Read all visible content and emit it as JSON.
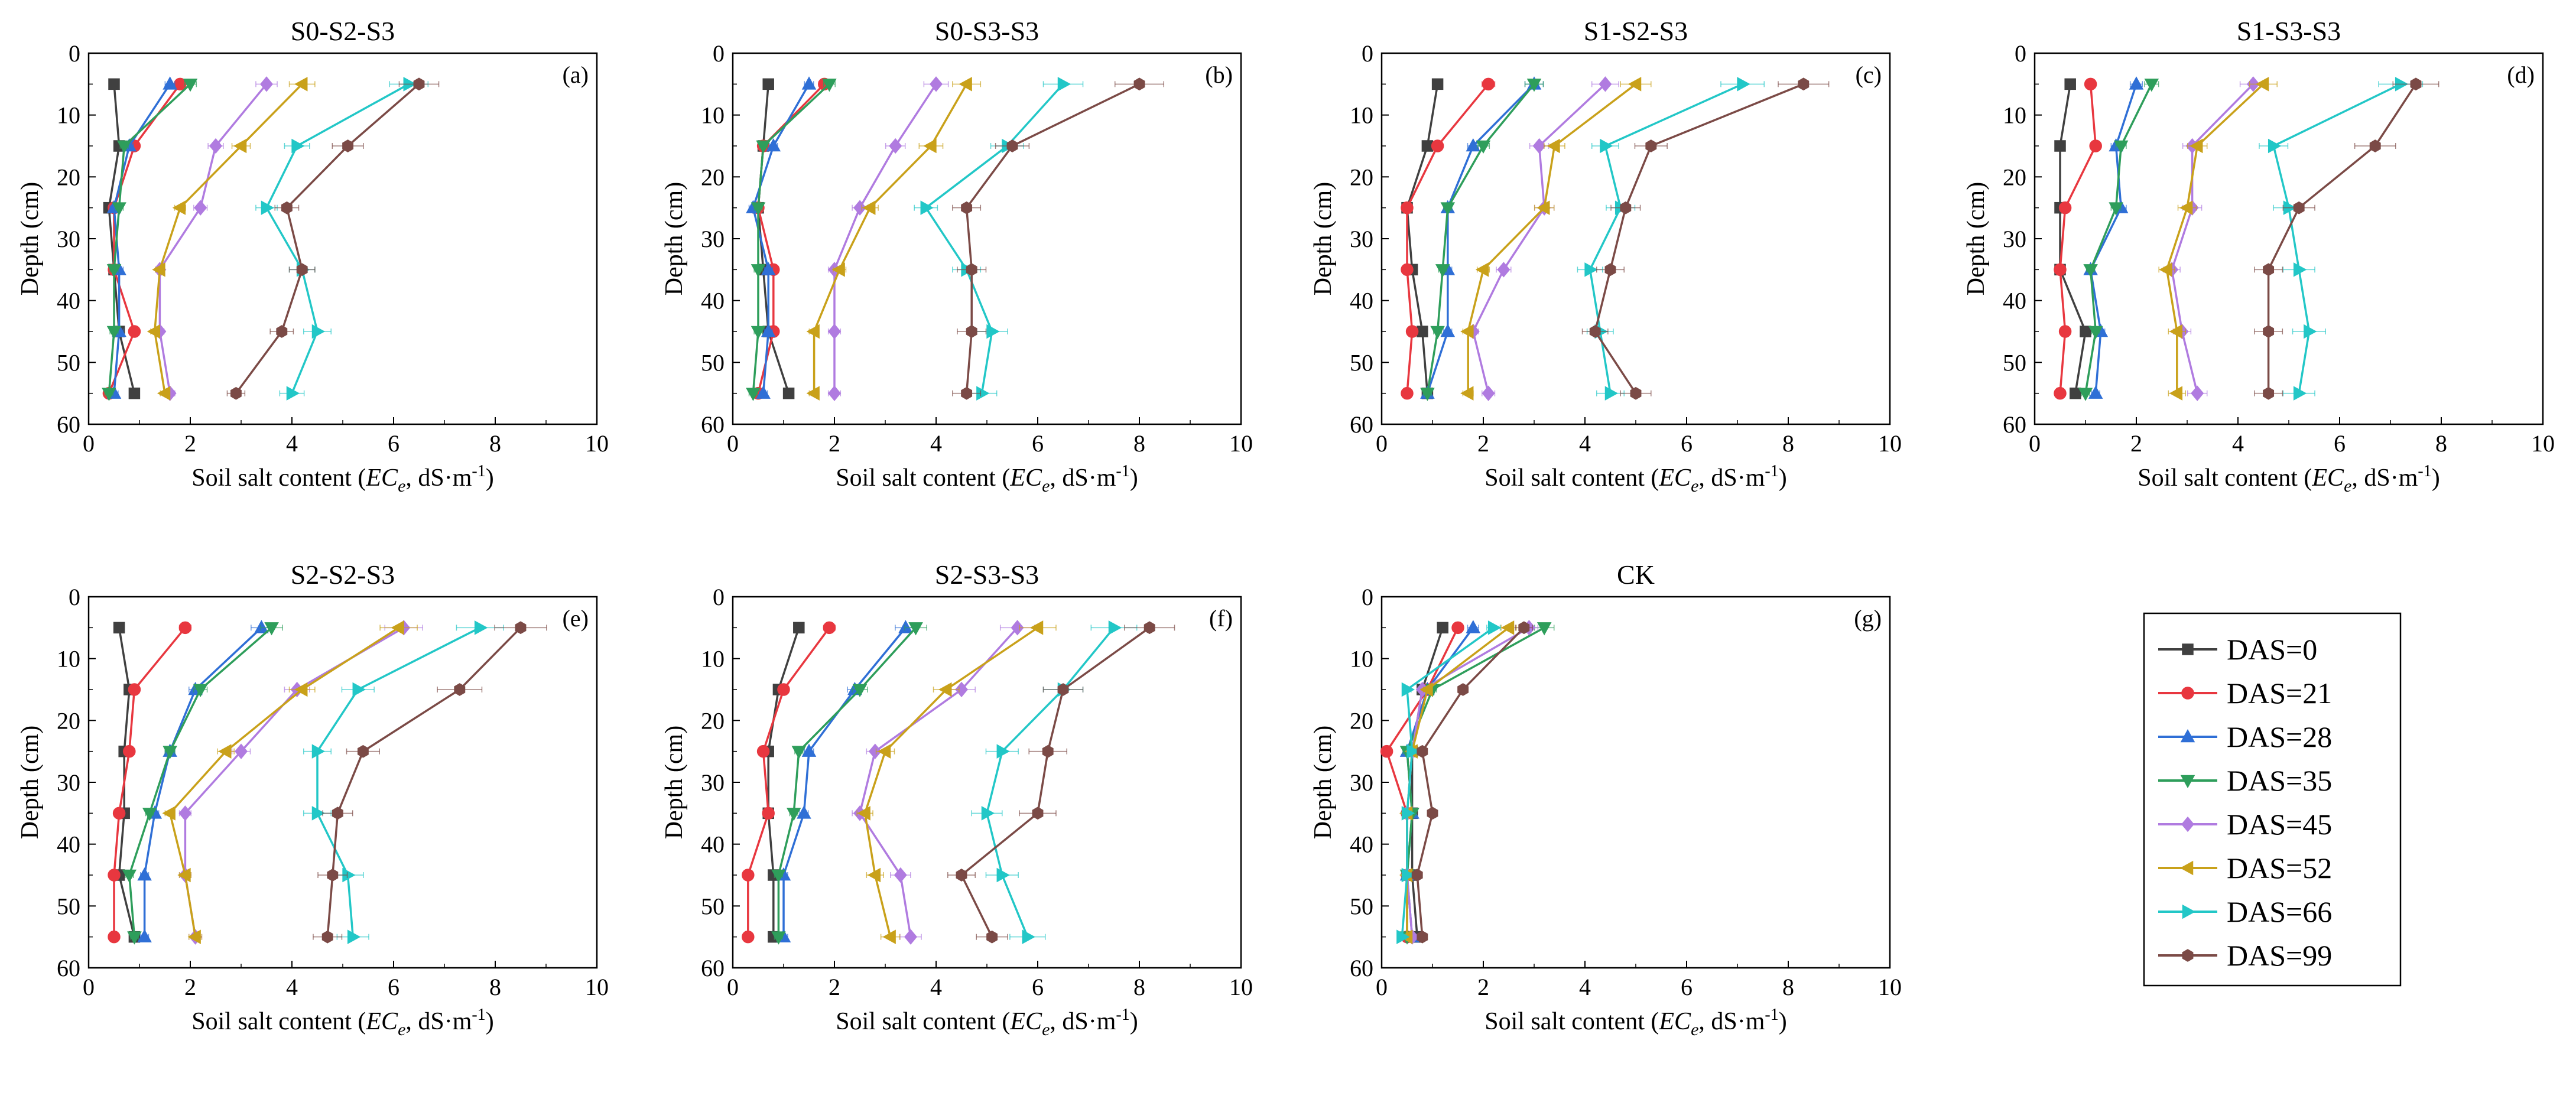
{
  "chart_data": {
    "type": "line",
    "depths": [
      5,
      15,
      25,
      35,
      45,
      55
    ],
    "xlim": [
      0,
      10
    ],
    "ylim": [
      0,
      60
    ],
    "xticks": [
      0,
      2,
      4,
      6,
      8,
      10
    ],
    "yticks": [
      0,
      10,
      20,
      30,
      40,
      50,
      60
    ],
    "xlabel": {
      "prefix": "Soil salt content (",
      "var": "EC",
      "sub": "e",
      "unit": ", dS·m",
      "sup": "-1",
      "suffix": ")"
    },
    "ylabel": "Depth (cm)",
    "legend": [
      {
        "label": "DAS=0",
        "color": "#404040",
        "marker": "square"
      },
      {
        "label": "DAS=21",
        "color": "#e8373f",
        "marker": "circle"
      },
      {
        "label": "DAS=28",
        "color": "#2f6fd6",
        "marker": "triangle-up"
      },
      {
        "label": "DAS=35",
        "color": "#2e9e5b",
        "marker": "triangle-down"
      },
      {
        "label": "DAS=45",
        "color": "#b07be0",
        "marker": "diamond"
      },
      {
        "label": "DAS=52",
        "color": "#c9a11a",
        "marker": "triangle-left"
      },
      {
        "label": "DAS=66",
        "color": "#22c7c7",
        "marker": "triangle-right"
      },
      {
        "label": "DAS=99",
        "color": "#7b4a46",
        "marker": "hexagon"
      }
    ],
    "panels": [
      {
        "title": "S0-S2-S3",
        "letter": "(a)",
        "series": [
          [
            0.5,
            0.6,
            0.4,
            0.5,
            0.6,
            0.9
          ],
          [
            1.8,
            0.9,
            0.5,
            0.5,
            0.9,
            0.4
          ],
          [
            1.6,
            0.8,
            0.5,
            0.6,
            0.6,
            0.5
          ],
          [
            2.0,
            0.7,
            0.6,
            0.5,
            0.5,
            0.4
          ],
          [
            3.5,
            2.5,
            2.2,
            1.4,
            1.4,
            1.6
          ],
          [
            4.2,
            3.0,
            1.8,
            1.4,
            1.3,
            1.5
          ],
          [
            6.3,
            4.1,
            3.5,
            4.2,
            4.5,
            4.0
          ],
          [
            6.5,
            5.1,
            3.9,
            4.2,
            3.8,
            2.9
          ]
        ]
      },
      {
        "title": "S0-S3-S3",
        "letter": "(b)",
        "series": [
          [
            0.7,
            0.6,
            0.5,
            0.6,
            0.7,
            1.1
          ],
          [
            1.8,
            0.6,
            0.5,
            0.8,
            0.8,
            0.5
          ],
          [
            1.5,
            0.8,
            0.4,
            0.7,
            0.7,
            0.6
          ],
          [
            1.9,
            0.6,
            0.5,
            0.5,
            0.5,
            0.4
          ],
          [
            4.0,
            3.2,
            2.5,
            2.0,
            2.0,
            2.0
          ],
          [
            4.6,
            3.9,
            2.7,
            2.1,
            1.6,
            1.6
          ],
          [
            6.5,
            5.4,
            3.8,
            4.6,
            5.1,
            4.9
          ],
          [
            8.0,
            5.5,
            4.6,
            4.7,
            4.7,
            4.6
          ]
        ]
      },
      {
        "title": "S1-S2-S3",
        "letter": "(c)",
        "series": [
          [
            1.1,
            0.9,
            0.5,
            0.6,
            0.8,
            0.9
          ],
          [
            2.1,
            1.1,
            0.5,
            0.5,
            0.6,
            0.5
          ],
          [
            3.0,
            1.8,
            1.3,
            1.3,
            1.3,
            0.9
          ],
          [
            3.0,
            2.0,
            1.3,
            1.2,
            1.1,
            0.9
          ],
          [
            4.4,
            3.1,
            3.2,
            2.4,
            1.8,
            2.1
          ],
          [
            5.0,
            3.4,
            3.2,
            2.0,
            1.7,
            1.7
          ],
          [
            7.1,
            4.4,
            4.7,
            4.1,
            4.3,
            4.5
          ],
          [
            8.3,
            5.3,
            4.8,
            4.5,
            4.2,
            5.0
          ]
        ]
      },
      {
        "title": "S1-S3-S3",
        "letter": "(d)",
        "series": [
          [
            0.7,
            0.5,
            0.5,
            0.5,
            1.0,
            0.8
          ],
          [
            1.1,
            1.2,
            0.6,
            0.5,
            0.6,
            0.5
          ],
          [
            2.0,
            1.6,
            1.7,
            1.1,
            1.3,
            1.2
          ],
          [
            2.3,
            1.7,
            1.6,
            1.1,
            1.2,
            1.0
          ],
          [
            4.3,
            3.1,
            3.1,
            2.7,
            2.9,
            3.2
          ],
          [
            4.5,
            3.2,
            3.0,
            2.6,
            2.8,
            2.8
          ],
          [
            7.2,
            4.7,
            5.0,
            5.2,
            5.4,
            5.2
          ],
          [
            7.5,
            6.7,
            5.2,
            4.6,
            4.6,
            4.6
          ]
        ]
      },
      {
        "title": "S2-S2-S3",
        "letter": "(e)",
        "series": [
          [
            0.6,
            0.8,
            0.7,
            0.7,
            0.6,
            0.9
          ],
          [
            1.9,
            0.9,
            0.8,
            0.6,
            0.5,
            0.5
          ],
          [
            3.4,
            2.1,
            1.6,
            1.3,
            1.1,
            1.1
          ],
          [
            3.6,
            2.2,
            1.6,
            1.2,
            0.8,
            0.9
          ],
          [
            6.2,
            4.1,
            3.0,
            1.9,
            1.9,
            2.1
          ],
          [
            6.1,
            4.2,
            2.7,
            1.6,
            1.9,
            2.1
          ],
          [
            7.7,
            5.3,
            4.5,
            4.5,
            5.1,
            5.2
          ],
          [
            8.5,
            7.3,
            5.4,
            4.9,
            4.8,
            4.7
          ]
        ]
      },
      {
        "title": "S2-S3-S3",
        "letter": "(f)",
        "series": [
          [
            1.3,
            0.9,
            0.7,
            0.7,
            0.8,
            0.8
          ],
          [
            1.9,
            1.0,
            0.6,
            0.7,
            0.3,
            0.3
          ],
          [
            3.4,
            2.4,
            1.5,
            1.4,
            1.0,
            1.0
          ],
          [
            3.6,
            2.5,
            1.3,
            1.2,
            0.9,
            0.9
          ],
          [
            5.6,
            4.5,
            2.8,
            2.5,
            3.3,
            3.5
          ],
          [
            6.0,
            4.2,
            3.0,
            2.6,
            2.8,
            3.1
          ],
          [
            7.5,
            6.5,
            5.3,
            5.0,
            5.3,
            5.8
          ],
          [
            8.2,
            6.5,
            6.2,
            6.0,
            4.5,
            5.1
          ]
        ]
      },
      {
        "title": "CK",
        "letter": "(g)",
        "series": [
          [
            1.2,
            0.8,
            0.6,
            0.6,
            0.6,
            0.7
          ],
          [
            1.5,
            0.9,
            0.1,
            0.5,
            0.5,
            0.5
          ],
          [
            1.8,
            0.9,
            0.5,
            0.6,
            0.5,
            0.6
          ],
          [
            3.2,
            1.0,
            0.5,
            0.6,
            0.5,
            0.5
          ],
          [
            2.9,
            0.8,
            0.6,
            0.5,
            0.5,
            0.6
          ],
          [
            2.5,
            0.9,
            0.6,
            0.5,
            0.5,
            0.5
          ],
          [
            2.2,
            0.5,
            0.6,
            0.5,
            0.5,
            0.4
          ],
          [
            2.8,
            1.6,
            0.8,
            1.0,
            0.7,
            0.8
          ]
        ]
      }
    ]
  }
}
